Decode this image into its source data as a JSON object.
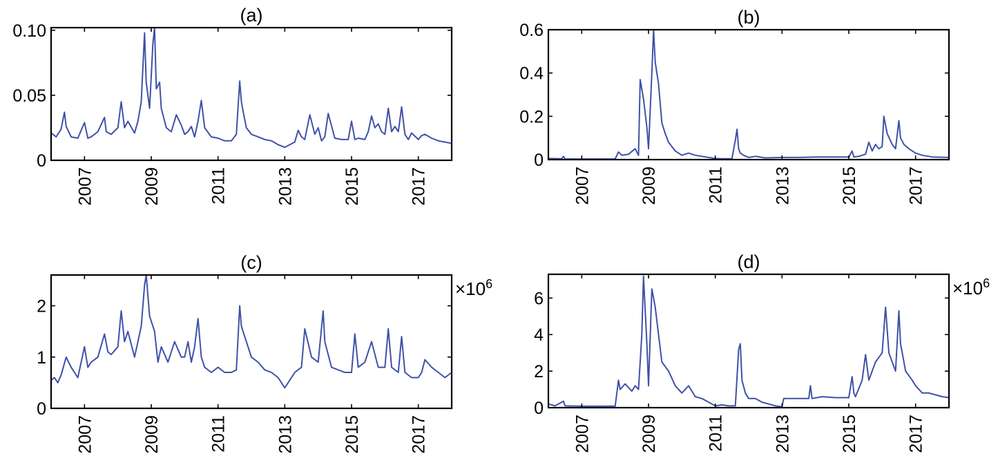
{
  "chart_data": [
    {
      "type": "line",
      "title": "(a)",
      "xlim": [
        2006.0,
        2018.0
      ],
      "ylim": [
        0,
        0.102
      ],
      "yticks": [
        0,
        0.05,
        0.1
      ],
      "yticklabels": [
        "0",
        "0.05",
        "0.10"
      ],
      "xticks": [
        2007,
        2009,
        2011,
        2013,
        2015,
        2017
      ],
      "xticklabels": [
        "2007",
        "2009",
        "2011",
        "2013",
        "2015",
        "2017"
      ],
      "multiplier": "",
      "color": "#3f51a8",
      "series": [
        {
          "x": [
            2006.0,
            2006.15,
            2006.3,
            2006.4,
            2006.45,
            2006.6,
            2006.8,
            2007.0,
            2007.1,
            2007.2,
            2007.4,
            2007.6,
            2007.65,
            2007.8,
            2008.0,
            2008.1,
            2008.2,
            2008.3,
            2008.5,
            2008.6,
            2008.7,
            2008.8,
            2008.85,
            2008.95,
            2009.05,
            2009.1,
            2009.15,
            2009.25,
            2009.3,
            2009.45,
            2009.6,
            2009.75,
            2009.9,
            2010.0,
            2010.1,
            2010.2,
            2010.3,
            2010.4,
            2010.5,
            2010.6,
            2010.8,
            2011.0,
            2011.2,
            2011.4,
            2011.55,
            2011.65,
            2011.7,
            2011.75,
            2011.85,
            2012.0,
            2012.2,
            2012.4,
            2012.6,
            2012.8,
            2013.0,
            2013.15,
            2013.3,
            2013.4,
            2013.5,
            2013.6,
            2013.75,
            2013.9,
            2014.0,
            2014.1,
            2014.2,
            2014.3,
            2014.5,
            2014.7,
            2014.9,
            2015.0,
            2015.1,
            2015.2,
            2015.4,
            2015.5,
            2015.6,
            2015.7,
            2015.8,
            2015.9,
            2016.0,
            2016.1,
            2016.2,
            2016.3,
            2016.4,
            2016.5,
            2016.6,
            2016.7,
            2016.8,
            2017.0,
            2017.1,
            2017.2,
            2017.4,
            2017.6,
            2017.8,
            2018.0
          ],
          "y": [
            0.021,
            0.018,
            0.024,
            0.037,
            0.026,
            0.018,
            0.017,
            0.029,
            0.017,
            0.018,
            0.022,
            0.033,
            0.022,
            0.02,
            0.025,
            0.045,
            0.025,
            0.03,
            0.021,
            0.03,
            0.045,
            0.098,
            0.06,
            0.04,
            0.09,
            0.102,
            0.055,
            0.06,
            0.04,
            0.025,
            0.022,
            0.035,
            0.027,
            0.02,
            0.022,
            0.026,
            0.018,
            0.03,
            0.046,
            0.025,
            0.018,
            0.017,
            0.015,
            0.015,
            0.02,
            0.061,
            0.045,
            0.038,
            0.025,
            0.02,
            0.018,
            0.016,
            0.015,
            0.012,
            0.01,
            0.012,
            0.014,
            0.023,
            0.018,
            0.016,
            0.035,
            0.02,
            0.025,
            0.015,
            0.018,
            0.036,
            0.017,
            0.016,
            0.016,
            0.03,
            0.016,
            0.017,
            0.016,
            0.022,
            0.034,
            0.025,
            0.028,
            0.022,
            0.02,
            0.04,
            0.022,
            0.026,
            0.022,
            0.041,
            0.02,
            0.016,
            0.021,
            0.016,
            0.019,
            0.02,
            0.017,
            0.015,
            0.014,
            0.013
          ]
        }
      ]
    },
    {
      "type": "line",
      "title": "(b)",
      "xlim": [
        2006.0,
        2018.0
      ],
      "ylim": [
        0,
        0.6
      ],
      "yticks": [
        0,
        0.2,
        0.4,
        0.6
      ],
      "yticklabels": [
        "0",
        "0.2",
        "0.4",
        "0.6"
      ],
      "xticks": [
        2007,
        2009,
        2011,
        2013,
        2015,
        2017
      ],
      "xticklabels": [
        "2007",
        "2009",
        "2011",
        "2013",
        "2015",
        "2017"
      ],
      "multiplier": "",
      "color": "#3f51a8",
      "series": [
        {
          "x": [
            2006.0,
            2006.4,
            2006.45,
            2006.5,
            2007.0,
            2007.5,
            2008.0,
            2008.1,
            2008.2,
            2008.4,
            2008.6,
            2008.7,
            2008.75,
            2008.85,
            2008.95,
            2009.0,
            2009.1,
            2009.15,
            2009.2,
            2009.3,
            2009.4,
            2009.5,
            2009.6,
            2009.8,
            2010.0,
            2010.2,
            2010.4,
            2010.6,
            2010.8,
            2011.0,
            2011.2,
            2011.5,
            2011.6,
            2011.65,
            2011.7,
            2011.75,
            2011.85,
            2012.0,
            2012.2,
            2012.5,
            2013.0,
            2013.5,
            2014.0,
            2014.5,
            2015.0,
            2015.1,
            2015.15,
            2015.3,
            2015.4,
            2015.5,
            2015.6,
            2015.7,
            2015.8,
            2015.9,
            2016.0,
            2016.05,
            2016.15,
            2016.3,
            2016.4,
            2016.5,
            2016.55,
            2016.65,
            2016.8,
            2017.0,
            2017.2,
            2017.5,
            2018.0
          ],
          "y": [
            0.005,
            0.004,
            0.015,
            0.003,
            0.003,
            0.003,
            0.003,
            0.035,
            0.02,
            0.025,
            0.05,
            0.02,
            0.37,
            0.28,
            0.15,
            0.05,
            0.4,
            0.6,
            0.45,
            0.35,
            0.17,
            0.12,
            0.08,
            0.04,
            0.02,
            0.03,
            0.02,
            0.015,
            0.01,
            0.005,
            0.004,
            0.004,
            0.09,
            0.14,
            0.05,
            0.03,
            0.02,
            0.01,
            0.015,
            0.008,
            0.01,
            0.01,
            0.012,
            0.012,
            0.012,
            0.04,
            0.012,
            0.015,
            0.02,
            0.025,
            0.08,
            0.04,
            0.07,
            0.05,
            0.06,
            0.2,
            0.12,
            0.07,
            0.05,
            0.18,
            0.1,
            0.07,
            0.05,
            0.03,
            0.02,
            0.012,
            0.01
          ]
        }
      ]
    },
    {
      "type": "line",
      "title": "(c)",
      "xlim": [
        2006.0,
        2018.0
      ],
      "ylim": [
        0,
        2.6
      ],
      "yticks": [
        0,
        1,
        2
      ],
      "yticklabels": [
        "0",
        "1",
        "2"
      ],
      "xticks": [
        2007,
        2009,
        2011,
        2013,
        2015,
        2017
      ],
      "xticklabels": [
        "2007",
        "2009",
        "2011",
        "2013",
        "2015",
        "2017"
      ],
      "multiplier": "×10",
      "multiplier_exp": "6",
      "color": "#3f51a8",
      "series": [
        {
          "x": [
            2006.0,
            2006.1,
            2006.2,
            2006.3,
            2006.45,
            2006.6,
            2006.8,
            2007.0,
            2007.1,
            2007.2,
            2007.4,
            2007.6,
            2007.7,
            2007.8,
            2008.0,
            2008.1,
            2008.2,
            2008.3,
            2008.5,
            2008.6,
            2008.7,
            2008.8,
            2008.85,
            2008.95,
            2009.1,
            2009.2,
            2009.3,
            2009.5,
            2009.7,
            2009.9,
            2010.0,
            2010.1,
            2010.2,
            2010.3,
            2010.4,
            2010.5,
            2010.6,
            2010.8,
            2011.0,
            2011.2,
            2011.4,
            2011.55,
            2011.65,
            2011.7,
            2011.8,
            2012.0,
            2012.2,
            2012.4,
            2012.6,
            2012.8,
            2013.0,
            2013.15,
            2013.3,
            2013.5,
            2013.6,
            2013.8,
            2014.0,
            2014.15,
            2014.2,
            2014.4,
            2014.6,
            2014.8,
            2015.0,
            2015.1,
            2015.2,
            2015.4,
            2015.6,
            2015.8,
            2016.0,
            2016.1,
            2016.2,
            2016.4,
            2016.5,
            2016.6,
            2016.8,
            2017.0,
            2017.1,
            2017.2,
            2017.4,
            2017.6,
            2017.8,
            2018.0
          ],
          "y": [
            0.55,
            0.6,
            0.5,
            0.65,
            1.0,
            0.8,
            0.6,
            1.2,
            0.8,
            0.9,
            1.0,
            1.45,
            1.1,
            1.05,
            1.2,
            1.9,
            1.3,
            1.5,
            1.0,
            1.3,
            1.6,
            2.4,
            2.6,
            1.8,
            1.5,
            0.9,
            1.2,
            0.9,
            1.3,
            1.0,
            1.0,
            1.3,
            0.9,
            1.2,
            1.75,
            1.0,
            0.8,
            0.7,
            0.8,
            0.7,
            0.7,
            0.75,
            2.0,
            1.6,
            1.4,
            1.0,
            0.9,
            0.75,
            0.7,
            0.6,
            0.4,
            0.55,
            0.7,
            0.8,
            1.55,
            1.0,
            0.9,
            1.9,
            1.3,
            0.8,
            0.75,
            0.7,
            0.7,
            1.45,
            0.8,
            0.9,
            1.3,
            0.8,
            0.8,
            1.55,
            0.8,
            0.7,
            1.4,
            0.7,
            0.6,
            0.6,
            0.7,
            0.95,
            0.8,
            0.7,
            0.6,
            0.7
          ]
        }
      ]
    },
    {
      "type": "line",
      "title": "(d)",
      "xlim": [
        2006.0,
        2018.0
      ],
      "ylim": [
        0,
        7.3
      ],
      "yticks": [
        0,
        2,
        4,
        6
      ],
      "yticklabels": [
        "0",
        "2",
        "4",
        "6"
      ],
      "xticks": [
        2007,
        2009,
        2011,
        2013,
        2015,
        2017
      ],
      "xticklabels": [
        "2007",
        "2009",
        "2011",
        "2013",
        "2015",
        "2017"
      ],
      "multiplier": "×10",
      "multiplier_exp": "6",
      "color": "#3f51a8",
      "series": [
        {
          "x": [
            2006.0,
            2006.2,
            2006.45,
            2006.5,
            2007.0,
            2007.5,
            2008.0,
            2008.1,
            2008.15,
            2008.3,
            2008.5,
            2008.6,
            2008.7,
            2008.8,
            2008.85,
            2008.95,
            2009.0,
            2009.1,
            2009.2,
            2009.3,
            2009.4,
            2009.6,
            2009.8,
            2010.0,
            2010.2,
            2010.4,
            2010.6,
            2010.8,
            2011.0,
            2011.2,
            2011.4,
            2011.6,
            2011.7,
            2011.75,
            2011.8,
            2011.9,
            2012.0,
            2012.2,
            2012.4,
            2012.6,
            2012.8,
            2013.0,
            2013.05,
            2013.4,
            2013.8,
            2013.85,
            2013.9,
            2014.2,
            2014.6,
            2015.0,
            2015.1,
            2015.15,
            2015.2,
            2015.4,
            2015.5,
            2015.6,
            2015.7,
            2015.8,
            2016.0,
            2016.1,
            2016.2,
            2016.3,
            2016.4,
            2016.5,
            2016.55,
            2016.7,
            2016.9,
            2017.0,
            2017.2,
            2017.4,
            2017.6,
            2017.8,
            2018.0
          ],
          "y": [
            0.2,
            0.1,
            0.35,
            0.1,
            0.08,
            0.08,
            0.08,
            1.5,
            1.0,
            1.3,
            0.9,
            1.2,
            1.0,
            4.0,
            7.2,
            3.5,
            1.2,
            6.5,
            5.5,
            4.0,
            2.5,
            2.0,
            1.2,
            0.8,
            1.2,
            0.6,
            0.5,
            0.3,
            0.1,
            0.15,
            0.1,
            0.1,
            3.2,
            3.5,
            1.5,
            0.8,
            0.5,
            0.5,
            0.3,
            0.2,
            0.1,
            0.05,
            0.5,
            0.5,
            0.5,
            1.2,
            0.5,
            0.6,
            0.55,
            0.55,
            1.7,
            0.8,
            0.6,
            1.5,
            2.9,
            1.5,
            2.0,
            2.5,
            3.0,
            5.5,
            3.0,
            2.5,
            2.0,
            5.3,
            3.5,
            2.0,
            1.5,
            1.2,
            0.8,
            0.8,
            0.7,
            0.6,
            0.55
          ]
        }
      ]
    }
  ]
}
